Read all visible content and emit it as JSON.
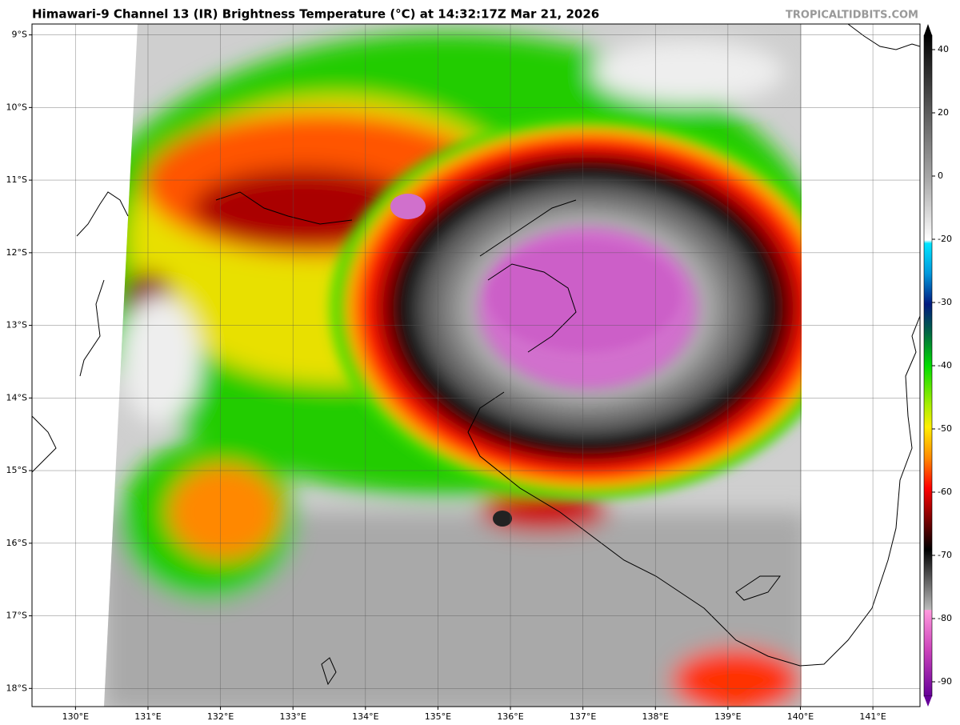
{
  "header": {
    "title": "Himawari-9 Channel 13 (IR) Brightness Temperature (°C) at 14:32:17Z Mar 21, 2026",
    "watermark": "TROPICALTIDBITS.COM"
  },
  "map": {
    "xlim": [
      129.4,
      141.65
    ],
    "ylim": [
      -18.25,
      -8.85
    ],
    "xticks": [
      {
        "value": 130,
        "label": "130°E"
      },
      {
        "value": 131,
        "label": "131°E"
      },
      {
        "value": 132,
        "label": "132°E"
      },
      {
        "value": 133,
        "label": "133°E"
      },
      {
        "value": 134,
        "label": "134°E"
      },
      {
        "value": 135,
        "label": "135°E"
      },
      {
        "value": 136,
        "label": "136°E"
      },
      {
        "value": 137,
        "label": "137°E"
      },
      {
        "value": 138,
        "label": "138°E"
      },
      {
        "value": 139,
        "label": "139°E"
      },
      {
        "value": 140,
        "label": "140°E"
      },
      {
        "value": 141,
        "label": "141°E"
      }
    ],
    "yticks": [
      {
        "value": -9,
        "label": "9°S"
      },
      {
        "value": -10,
        "label": "10°S"
      },
      {
        "value": -11,
        "label": "11°S"
      },
      {
        "value": -12,
        "label": "12°S"
      },
      {
        "value": -13,
        "label": "13°S"
      },
      {
        "value": -14,
        "label": "14°S"
      },
      {
        "value": -15,
        "label": "15°S"
      },
      {
        "value": -16,
        "label": "16°S"
      },
      {
        "value": -17,
        "label": "17°S"
      },
      {
        "value": -18,
        "label": "18°S"
      }
    ]
  },
  "colorbar": {
    "ticks": [
      40,
      20,
      0,
      -20,
      -30,
      -40,
      -50,
      -60,
      -70,
      -80,
      -90
    ]
  }
}
